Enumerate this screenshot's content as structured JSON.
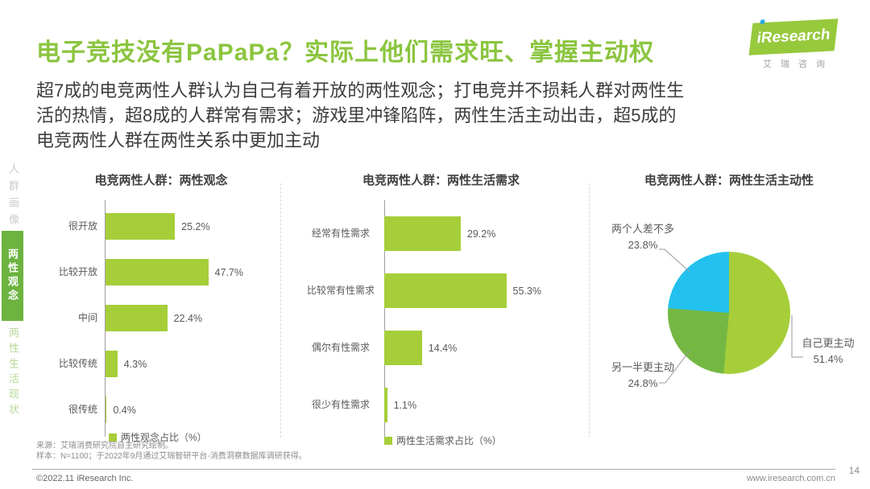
{
  "page": {
    "title": "电子竞技没有PaPaPa？实际上他们需求旺、掌握主动权",
    "subtitle": "超7成的电竞两性人群认为自己有着开放的两性观念；打电竞并不损耗人群对两性生活的热情，超8成的人群常有需求；游戏里冲锋陷阵，两性生活主动出击，超5成的电竞两性人群在两性关系中更加主动",
    "page_number": "14",
    "website": "www.iresearch.com.cn",
    "copyright": "©2022.11 iResearch Inc."
  },
  "logo": {
    "brand": "iResearch",
    "brand_cn": "艾瑞咨询",
    "flag_green": "#97c93d",
    "dot_blue": "#29aae1"
  },
  "sidebar": {
    "items": [
      {
        "label": "人群画像",
        "active": false
      },
      {
        "label": "两性观念",
        "active": true
      },
      {
        "label": "两性生活现状",
        "active": false
      }
    ]
  },
  "footnotes": {
    "source": "来源：艾瑞消费研究院自主研究绘制。",
    "sample": "样本：N=1100；于2022年9月通过艾瑞智研平台-消费洞察数据库调研获得。"
  },
  "colors": {
    "title_green": "#8bc53f",
    "bar_green": "#a6ce39",
    "pie_green_dark": "#74b843",
    "pie_cyan": "#22c1ee",
    "sidebar_active_green": "#6cb33f"
  },
  "chart_data": [
    {
      "type": "bar",
      "orientation": "horizontal",
      "title": "电竞两性人群：两性观念",
      "categories": [
        "很开放",
        "比较开放",
        "中间",
        "比较传统",
        "很传统"
      ],
      "values": [
        25.2,
        47.7,
        22.4,
        4.3,
        0.4
      ],
      "value_labels": [
        "25.2%",
        "47.7%",
        "22.4%",
        "4.3%",
        "0.4%"
      ],
      "legend": "两性观念占比（%）",
      "bar_color": "#a6ce39",
      "xlim": [
        0,
        50
      ],
      "grid": false
    },
    {
      "type": "bar",
      "orientation": "horizontal",
      "title": "电竞两性人群：两性生活需求",
      "categories": [
        "经常有性需求",
        "比较常有性需求",
        "偶尔有性需求",
        "很少有性需求"
      ],
      "values": [
        29.2,
        55.3,
        14.4,
        1.1
      ],
      "value_labels": [
        "29.2%",
        "55.3%",
        "14.4%",
        "1.1%"
      ],
      "legend": "两性生活需求占比（%）",
      "bar_color": "#a6ce39",
      "xlim": [
        0,
        60
      ],
      "grid": false
    },
    {
      "type": "pie",
      "title": "电竞两性人群：两性生活主动性",
      "start_angle_deg": 0,
      "slices": [
        {
          "label": "自己更主动",
          "value": 51.4,
          "pct": "51.4%",
          "color": "#a6ce39"
        },
        {
          "label": "另一半更主动",
          "value": 24.8,
          "pct": "24.8%",
          "color": "#74b843"
        },
        {
          "label": "两个人差不多",
          "value": 23.8,
          "pct": "23.8%",
          "color": "#22c1ee"
        }
      ]
    }
  ]
}
